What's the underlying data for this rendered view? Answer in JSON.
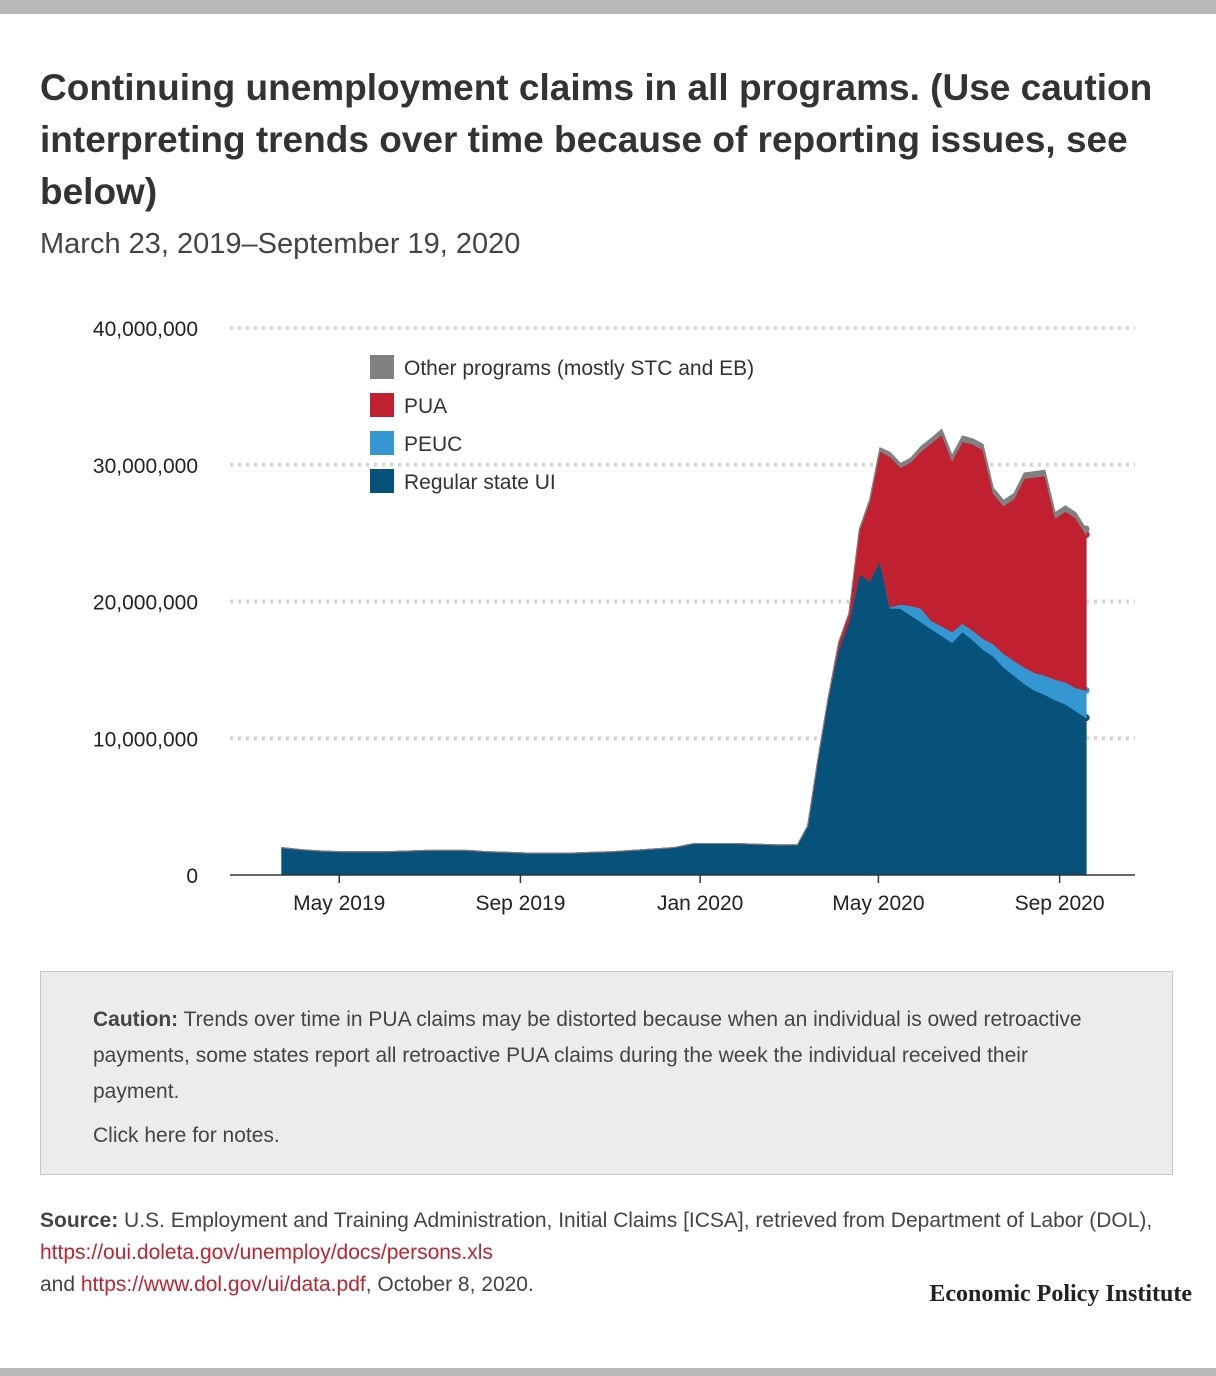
{
  "title": "Continuing unemployment claims in all programs. (Use caution interpreting trends over time because of reporting issues, see below)",
  "subtitle": "March 23, 2019–September 19, 2020",
  "chart_data": {
    "type": "area",
    "stacked": true,
    "title": "Continuing unemployment claims in all programs. (Use caution interpreting trends over time because of reporting issues, see below)",
    "subtitle": "March 23, 2019–September 19, 2020",
    "x_range": [
      "2019-03-23",
      "2020-09-19"
    ],
    "ylim": [
      0,
      40000000
    ],
    "y_ticks": [
      0,
      10000000,
      20000000,
      30000000,
      40000000
    ],
    "y_tick_labels": [
      "0",
      "10,000,000",
      "20,000,000",
      "30,000,000",
      "40,000,000"
    ],
    "x_ticks": [
      "2019-05-01",
      "2019-09-01",
      "2020-01-01",
      "2020-05-01",
      "2020-09-01"
    ],
    "x_tick_labels": [
      "May 2019",
      "Sep 2019",
      "Jan 2020",
      "May 2020",
      "Sep 2020"
    ],
    "grid": "horizontal dotted",
    "legend_position": "top-left",
    "legend": [
      "Other programs (mostly STC and EB)",
      "PUA",
      "PEUC",
      "Regular state UI"
    ],
    "x": [
      "2019-03-23",
      "2019-04-06",
      "2019-04-20",
      "2019-05-04",
      "2019-05-18",
      "2019-06-01",
      "2019-06-15",
      "2019-06-29",
      "2019-07-13",
      "2019-07-27",
      "2019-08-10",
      "2019-08-24",
      "2019-09-07",
      "2019-09-21",
      "2019-10-05",
      "2019-10-19",
      "2019-11-02",
      "2019-11-16",
      "2019-11-30",
      "2019-12-14",
      "2019-12-28",
      "2020-01-11",
      "2020-01-25",
      "2020-02-08",
      "2020-02-22",
      "2020-03-07",
      "2020-03-14",
      "2020-03-21",
      "2020-03-28",
      "2020-04-04",
      "2020-04-11",
      "2020-04-18",
      "2020-04-25",
      "2020-05-02",
      "2020-05-09",
      "2020-05-16",
      "2020-05-23",
      "2020-05-30",
      "2020-06-06",
      "2020-06-13",
      "2020-06-20",
      "2020-06-27",
      "2020-07-04",
      "2020-07-11",
      "2020-07-18",
      "2020-07-25",
      "2020-08-01",
      "2020-08-08",
      "2020-08-15",
      "2020-08-22",
      "2020-08-29",
      "2020-09-05",
      "2020-09-12",
      "2020-09-19"
    ],
    "series": [
      {
        "name": "Regular state UI",
        "color": "#07527a",
        "values": [
          2000000,
          1850000,
          1750000,
          1700000,
          1700000,
          1700000,
          1750000,
          1800000,
          1800000,
          1800000,
          1700000,
          1650000,
          1600000,
          1600000,
          1600000,
          1650000,
          1700000,
          1800000,
          1900000,
          2000000,
          2300000,
          2300000,
          2300000,
          2250000,
          2200000,
          2200000,
          3600000,
          8500000,
          13000000,
          16500000,
          18500000,
          22000000,
          21500000,
          23000000,
          19500000,
          19500000,
          19000000,
          18500000,
          18000000,
          17500000,
          17000000,
          17800000,
          17200000,
          16500000,
          16000000,
          15200000,
          14600000,
          14000000,
          13500000,
          13200000,
          12800000,
          12500000,
          12000000,
          11500000
        ]
      },
      {
        "name": "PEUC",
        "color": "#3497d1",
        "values": [
          0,
          0,
          0,
          0,
          0,
          0,
          0,
          0,
          0,
          0,
          0,
          0,
          0,
          0,
          0,
          0,
          0,
          0,
          0,
          0,
          0,
          0,
          0,
          0,
          0,
          0,
          0,
          0,
          0,
          0,
          0,
          0,
          0,
          0,
          100000,
          300000,
          700000,
          1000000,
          600000,
          700000,
          800000,
          600000,
          700000,
          800000,
          900000,
          1000000,
          1100000,
          1200000,
          1300000,
          1400000,
          1500000,
          1600000,
          1700000,
          2000000
        ]
      },
      {
        "name": "PUA",
        "color": "#c0202f",
        "values": [
          0,
          0,
          0,
          0,
          0,
          0,
          0,
          0,
          0,
          0,
          0,
          0,
          0,
          0,
          0,
          0,
          0,
          0,
          0,
          0,
          0,
          0,
          0,
          0,
          0,
          0,
          0,
          0,
          0,
          500000,
          600000,
          3200000,
          5800000,
          8000000,
          11000000,
          10000000,
          10500000,
          11500000,
          13000000,
          14000000,
          12500000,
          13300000,
          13600000,
          13800000,
          11000000,
          10800000,
          11800000,
          13800000,
          14300000,
          14600000,
          11800000,
          12500000,
          12400000,
          11400000
        ]
      },
      {
        "name": "Other programs (mostly STC and EB)",
        "color": "#808080",
        "values": [
          0,
          0,
          0,
          0,
          0,
          0,
          0,
          0,
          0,
          0,
          0,
          0,
          0,
          0,
          0,
          0,
          0,
          0,
          0,
          0,
          0,
          0,
          0,
          0,
          0,
          0,
          0,
          0,
          0,
          0,
          50000,
          100000,
          150000,
          250000,
          300000,
          300000,
          300000,
          350000,
          350000,
          400000,
          400000,
          400000,
          400000,
          400000,
          400000,
          400000,
          400000,
          400000,
          400000,
          400000,
          400000,
          400000,
          400000,
          400000
        ]
      }
    ]
  },
  "caution": {
    "label": "Caution:",
    "text": " Trends over time in PUA claims may be distorted because when an individual is owed retroactive payments, some states report all retroactive PUA claims during the week the individual received their payment.",
    "notes_link": "Click here for notes."
  },
  "source": {
    "label": "Source:",
    "text1": " U.S. Employment and Training Administration, Initial Claims [ICSA], retrieved from Department of Labor (DOL), ",
    "url1": "https://oui.doleta.gov/unemploy/docs/persons.xls",
    "text2": "and ",
    "url2": "https://www.dol.gov/ui/data.pdf",
    "text3": ", October 8, 2020."
  },
  "brand": "Economic Policy Institute"
}
